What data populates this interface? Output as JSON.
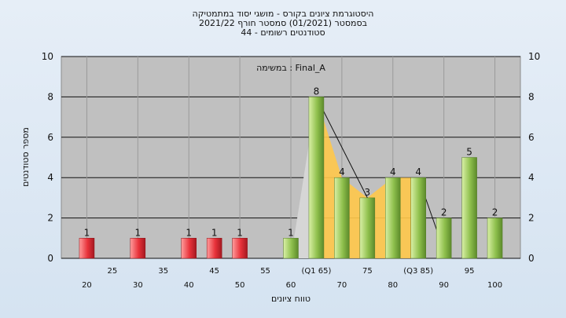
{
  "chart_data": {
    "type": "bar",
    "title_lines": [
      "היסטוגרמת ציונים בקורס - מושגי יסוד במתמטיקה",
      "בסמסטר  (01/2021)  סמסטר חורף 2021/22",
      "סטודנטים רשומים - 44"
    ],
    "annotation": "במשימה : Final_A",
    "ylabel": "מספר סטודנטים",
    "xlabel": "טווח ציונים",
    "ylim": [
      0,
      10
    ],
    "yticks": [
      0,
      2,
      4,
      6,
      8,
      10
    ],
    "x_ticks_upper": [
      "25",
      "35",
      "45",
      "55",
      "(Q1 65)",
      "75",
      "(Q3 85)",
      "95"
    ],
    "x_ticks_lower": [
      "20",
      "30",
      "40",
      "50",
      "60",
      "70",
      "80",
      "90",
      "100"
    ],
    "categories": [
      20,
      30,
      40,
      45,
      50,
      60,
      65,
      70,
      75,
      80,
      85,
      90,
      95,
      100
    ],
    "values": [
      1,
      1,
      1,
      1,
      1,
      1,
      8,
      4,
      3,
      4,
      4,
      2,
      5,
      2
    ],
    "bar_colors": [
      "#e8323a",
      "#e8323a",
      "#e8323a",
      "#e8323a",
      "#e8323a",
      "#8fc04d",
      "#8fc04d",
      "#8fc04d",
      "#8fc04d",
      "#8fc04d",
      "#8fc04d",
      "#8fc04d",
      "#8fc04d",
      "#8fc04d"
    ],
    "iqr_band_color": "#ffc84a",
    "grid": true
  }
}
